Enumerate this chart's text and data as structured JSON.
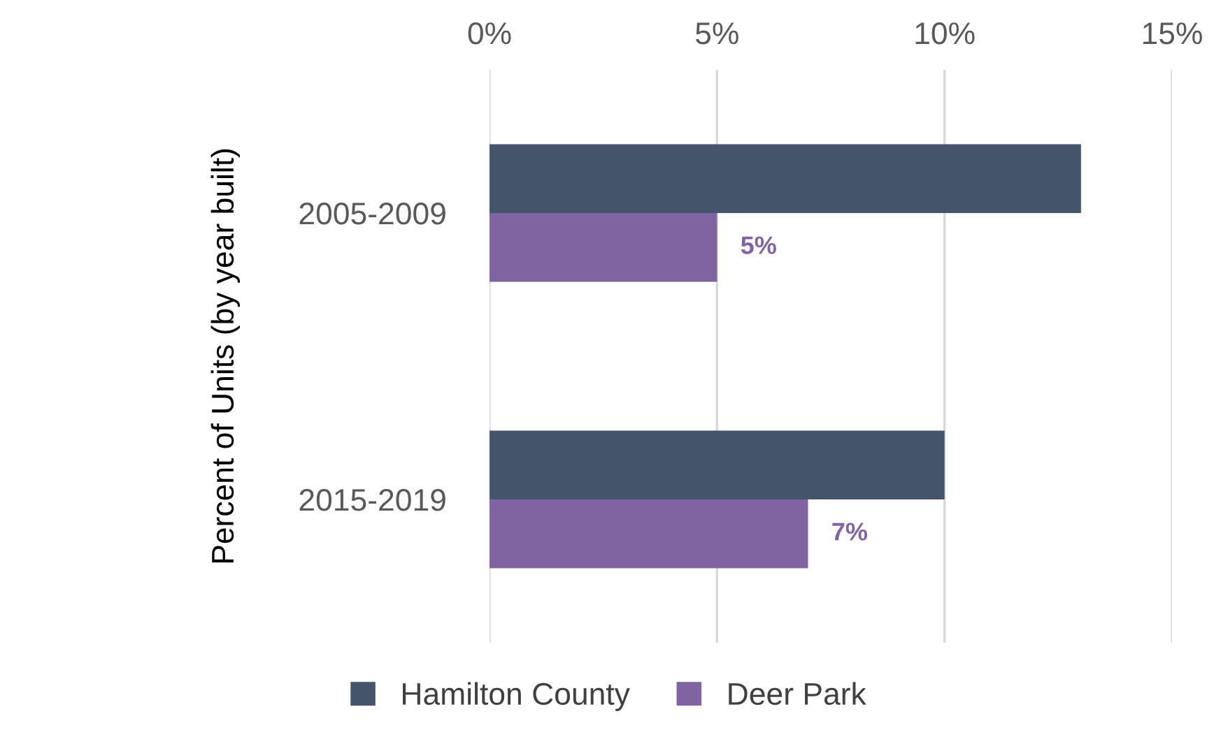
{
  "chart_data": {
    "type": "bar",
    "orientation": "horizontal",
    "ylabel": "Percent of Units (by year built)",
    "categories": [
      "2005-2009",
      "2015-2019"
    ],
    "series": [
      {
        "name": "Hamilton County",
        "color": "#44546a",
        "values": [
          13,
          10
        ]
      },
      {
        "name": "Deer Park",
        "color": "#8064a2",
        "values": [
          5,
          7
        ],
        "value_labels": [
          "5%",
          "7%"
        ]
      }
    ],
    "xlim": [
      0,
      15
    ],
    "xticks": [
      {
        "value": 0,
        "label": "0%"
      },
      {
        "value": 5,
        "label": "5%"
      },
      {
        "value": 10,
        "label": "10%"
      },
      {
        "value": 15,
        "label": "15%"
      }
    ],
    "grid": "x",
    "legend": "bottom"
  }
}
